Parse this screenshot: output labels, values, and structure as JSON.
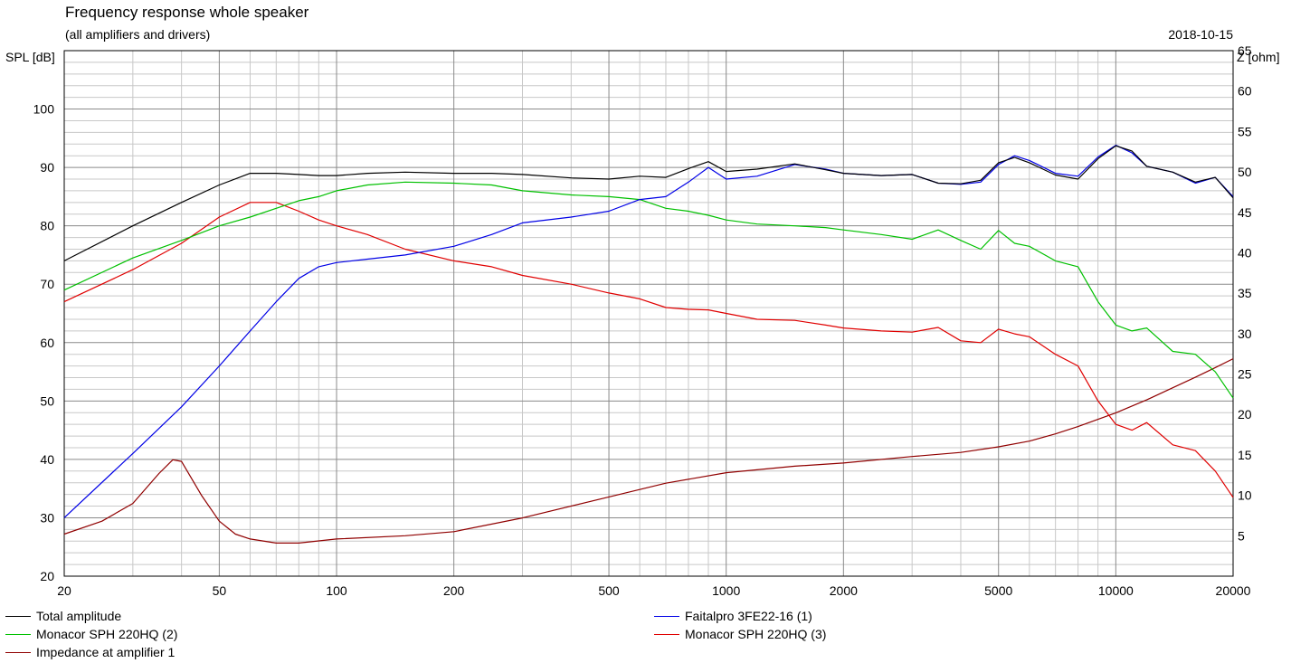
{
  "chart_data": {
    "type": "line",
    "title": "Frequency response whole speaker",
    "subtitle": "(all amplifiers and drivers)",
    "date": "2018-10-15",
    "ylabel": "SPL [dB]",
    "y2label": "Z [ohm]",
    "x_scale": "log",
    "xlim": [
      20,
      20000
    ],
    "ylim": [
      20,
      110
    ],
    "y2lim": [
      0,
      65
    ],
    "grid": true,
    "x_ticks": [
      20,
      50,
      100,
      200,
      500,
      1000,
      2000,
      5000,
      10000,
      20000
    ],
    "y_ticks": [
      20,
      30,
      40,
      50,
      60,
      70,
      80,
      90,
      100
    ],
    "y2_ticks": [
      5,
      10,
      15,
      20,
      25,
      30,
      35,
      40,
      45,
      50,
      55,
      60,
      65
    ],
    "legend_position": "bottom",
    "series": [
      {
        "name": "Total amplitude",
        "color": "#000000",
        "axis": "left",
        "x": [
          20,
          30,
          40,
          50,
          60,
          70,
          80,
          90,
          100,
          120,
          150,
          200,
          250,
          300,
          400,
          500,
          600,
          700,
          800,
          900,
          1000,
          1200,
          1500,
          1800,
          2000,
          2500,
          3000,
          3500,
          4000,
          4500,
          5000,
          5500,
          6000,
          7000,
          8000,
          9000,
          10000,
          11000,
          12000,
          14000,
          16000,
          18000,
          20000
        ],
        "y": [
          74,
          80,
          84,
          87,
          89,
          89,
          88.8,
          88.6,
          88.6,
          89,
          89.2,
          89,
          89,
          88.8,
          88.2,
          88,
          88.5,
          88.3,
          89.8,
          91,
          89.3,
          89.7,
          90.6,
          89.6,
          89,
          88.6,
          88.8,
          87.3,
          87.2,
          87.8,
          90.8,
          91.7,
          90.8,
          88.7,
          88,
          91.5,
          93.7,
          92.8,
          90.2,
          89.2,
          87.5,
          88.3,
          84.8
        ]
      },
      {
        "name": "Faitalpro 3FE22-16 (1)",
        "color": "#0000e6",
        "axis": "left",
        "x": [
          20,
          30,
          40,
          50,
          60,
          70,
          80,
          90,
          100,
          120,
          150,
          200,
          250,
          300,
          400,
          500,
          600,
          700,
          800,
          900,
          1000,
          1200,
          1500,
          1800,
          2000,
          2500,
          3000,
          3500,
          4000,
          4500,
          5000,
          5500,
          6000,
          7000,
          8000,
          9000,
          10000,
          11000,
          12000,
          14000,
          16000,
          18000,
          20000
        ],
        "y": [
          30,
          41,
          49,
          56,
          62,
          67,
          71,
          73,
          73.7,
          74.3,
          75,
          76.5,
          78.5,
          80.5,
          81.5,
          82.5,
          84.5,
          85,
          87.5,
          90,
          88,
          88.5,
          90.5,
          89.7,
          89,
          88.6,
          88.8,
          87.3,
          87.1,
          87.5,
          90.5,
          92,
          91.2,
          89,
          88.5,
          91.8,
          93.8,
          92.5,
          90.2,
          89.2,
          87.3,
          88.3,
          85
        ]
      },
      {
        "name": "Monacor SPH 220HQ (2)",
        "color": "#00c000",
        "axis": "left",
        "x": [
          20,
          30,
          40,
          50,
          60,
          70,
          80,
          90,
          100,
          120,
          150,
          200,
          250,
          300,
          400,
          500,
          600,
          700,
          800,
          900,
          1000,
          1200,
          1500,
          1800,
          2000,
          2500,
          3000,
          3500,
          4000,
          4500,
          5000,
          5500,
          6000,
          7000,
          8000,
          9000,
          10000,
          11000,
          12000,
          14000,
          16000,
          18000,
          20000
        ],
        "y": [
          69,
          74.5,
          77.5,
          80,
          81.5,
          83,
          84.3,
          85,
          86,
          87,
          87.5,
          87.3,
          87,
          86,
          85.3,
          85,
          84.5,
          83,
          82.5,
          81.8,
          81,
          80.3,
          80,
          79.7,
          79.3,
          78.5,
          77.7,
          79.3,
          77.5,
          76,
          79.2,
          77,
          76.5,
          74,
          73,
          67,
          63,
          62,
          62.5,
          58.5,
          58,
          55,
          50.5
        ]
      },
      {
        "name": "Monacor SPH 220HQ (3)",
        "color": "#e00000",
        "axis": "left",
        "x": [
          20,
          30,
          40,
          50,
          60,
          70,
          80,
          90,
          100,
          120,
          150,
          200,
          250,
          300,
          400,
          500,
          600,
          700,
          800,
          900,
          1000,
          1200,
          1500,
          1800,
          2000,
          2500,
          3000,
          3500,
          4000,
          4500,
          5000,
          5500,
          6000,
          7000,
          8000,
          9000,
          10000,
          11000,
          12000,
          14000,
          16000,
          18000,
          20000
        ],
        "y": [
          67,
          72.5,
          77,
          81.5,
          84,
          84,
          82.5,
          81,
          80,
          78.5,
          76,
          74,
          73,
          71.5,
          70,
          68.5,
          67.5,
          66,
          65.7,
          65.6,
          65,
          64,
          63.8,
          63,
          62.5,
          62,
          61.8,
          62.6,
          60.3,
          60,
          62.3,
          61.5,
          61,
          58,
          56,
          50,
          46,
          45,
          46.3,
          42.5,
          41.5,
          38,
          33.5
        ]
      },
      {
        "name": "Impedance at amplifier 1",
        "color": "#900000",
        "axis": "right",
        "x": [
          20,
          25,
          30,
          35,
          38,
          40,
          45,
          50,
          55,
          60,
          70,
          80,
          100,
          150,
          200,
          300,
          500,
          700,
          1000,
          1500,
          2000,
          3000,
          4000,
          5000,
          6000,
          7000,
          8000,
          9000,
          10000,
          12000,
          14000,
          16000,
          18000,
          20000
        ],
        "y": [
          5.2,
          6.8,
          9,
          12.7,
          14.4,
          14.2,
          10,
          6.8,
          5.2,
          4.6,
          4.1,
          4.1,
          4.6,
          5,
          5.5,
          7.2,
          9.8,
          11.5,
          12.8,
          13.6,
          14,
          14.8,
          15.3,
          16,
          16.7,
          17.6,
          18.5,
          19.4,
          20.2,
          21.8,
          23.3,
          24.6,
          25.8,
          26.9
        ]
      }
    ]
  }
}
